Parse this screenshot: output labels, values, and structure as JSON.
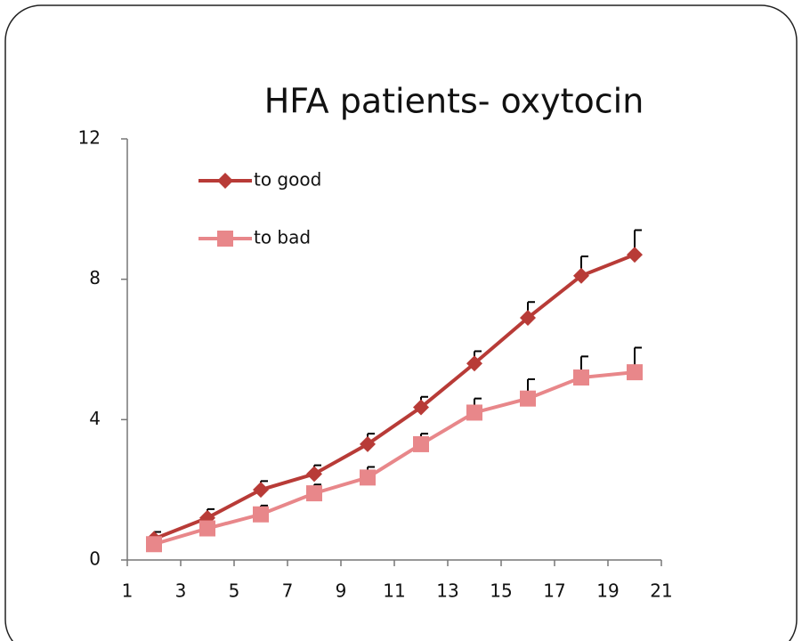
{
  "chart_data": {
    "type": "line",
    "title": "HFA patients- oxytocin",
    "x": [
      2,
      4,
      6,
      8,
      10,
      12,
      14,
      16,
      18,
      20
    ],
    "series": [
      {
        "name": "to good",
        "color": "#b83b37",
        "marker": "diamond",
        "values": [
          0.6,
          1.2,
          2.0,
          2.45,
          3.3,
          4.35,
          5.6,
          6.9,
          8.1,
          8.7
        ],
        "errors": [
          0.2,
          0.25,
          0.25,
          0.25,
          0.3,
          0.3,
          0.35,
          0.45,
          0.55,
          0.7
        ]
      },
      {
        "name": "to bad",
        "color": "#e8878a",
        "marker": "square",
        "values": [
          0.45,
          0.9,
          1.3,
          1.9,
          2.35,
          3.3,
          4.2,
          4.6,
          5.2,
          5.35
        ],
        "errors": [
          0.1,
          0.1,
          0.25,
          0.25,
          0.3,
          0.3,
          0.4,
          0.55,
          0.6,
          0.7
        ]
      }
    ],
    "xlim": [
      1,
      21
    ],
    "xticks": [
      1,
      3,
      5,
      7,
      9,
      11,
      13,
      15,
      17,
      19,
      21
    ],
    "ylim": [
      0,
      12
    ],
    "yticks": [
      0,
      4,
      8,
      12
    ],
    "grid": false,
    "legend": "upper left"
  }
}
